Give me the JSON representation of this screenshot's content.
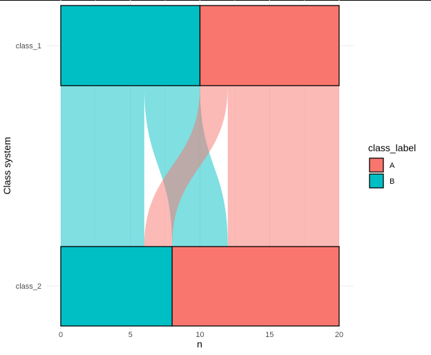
{
  "chart_data": {
    "type": "alluvial",
    "xlabel": "n",
    "ylabel": "Class system",
    "xlim": [
      0,
      20
    ],
    "x_ticks": [
      0,
      5,
      10,
      15,
      20
    ],
    "axes": [
      "class_1",
      "class_2"
    ],
    "legend": {
      "title": "class_label",
      "position": "right",
      "entries": [
        {
          "label": "A",
          "color": "#F8766D"
        },
        {
          "label": "B",
          "color": "#00BFC4"
        }
      ]
    },
    "strata": [
      {
        "axis": "class_1",
        "label": "B",
        "start": 0,
        "end": 10
      },
      {
        "axis": "class_1",
        "label": "A",
        "start": 10,
        "end": 20
      },
      {
        "axis": "class_2",
        "label": "B",
        "start": 0,
        "end": 8
      },
      {
        "axis": "class_2",
        "label": "A",
        "start": 8,
        "end": 20
      }
    ],
    "flows": [
      {
        "from": "B",
        "to": "B",
        "value": 6
      },
      {
        "from": "B",
        "to": "A",
        "value": 4
      },
      {
        "from": "A",
        "to": "B",
        "value": 2
      },
      {
        "from": "A",
        "to": "A",
        "value": 8
      }
    ],
    "grid": true
  }
}
